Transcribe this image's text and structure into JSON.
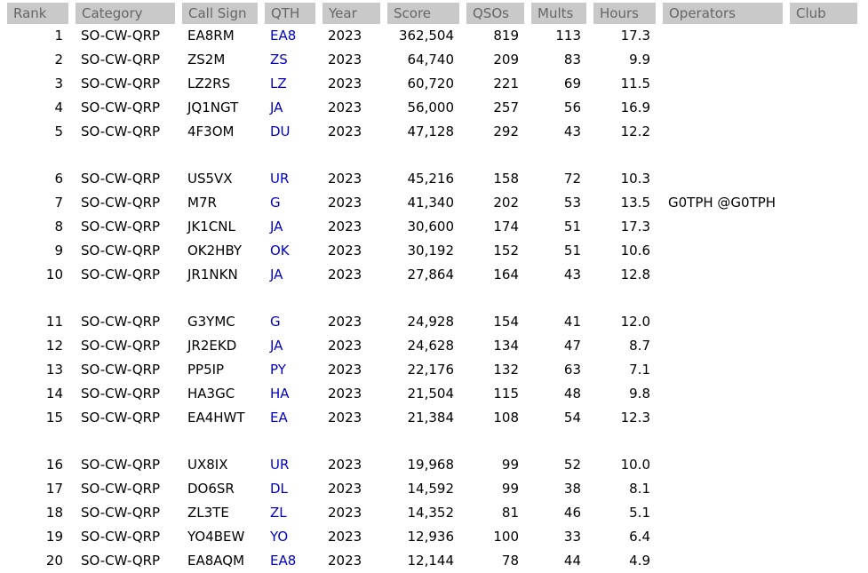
{
  "colors": {
    "header_bg": "#c9c9c9",
    "header_text": "#666666",
    "link_blue": "#0000cc",
    "body_text": "#000000",
    "page_bg": "#ffffff"
  },
  "table": {
    "columns": [
      {
        "key": "rank",
        "label": "Rank"
      },
      {
        "key": "category",
        "label": "Category"
      },
      {
        "key": "call_sign",
        "label": "Call Sign"
      },
      {
        "key": "qth",
        "label": "QTH"
      },
      {
        "key": "year",
        "label": "Year"
      },
      {
        "key": "score",
        "label": "Score"
      },
      {
        "key": "qsos",
        "label": "QSOs"
      },
      {
        "key": "mults",
        "label": "Mults"
      },
      {
        "key": "hours",
        "label": "Hours"
      },
      {
        "key": "operators",
        "label": "Operators"
      },
      {
        "key": "club",
        "label": "Club"
      }
    ],
    "groups": [
      {
        "rows": [
          {
            "rank": "1",
            "category": "SO-CW-QRP",
            "call_sign": "EA8RM",
            "qth": "EA8",
            "year": "2023",
            "score": "362,504",
            "qsos": "819",
            "mults": "113",
            "hours": "17.3",
            "operators": "",
            "club": ""
          },
          {
            "rank": "2",
            "category": "SO-CW-QRP",
            "call_sign": "ZS2M",
            "qth": "ZS",
            "year": "2023",
            "score": "64,740",
            "qsos": "209",
            "mults": "83",
            "hours": "9.9",
            "operators": "",
            "club": ""
          },
          {
            "rank": "3",
            "category": "SO-CW-QRP",
            "call_sign": "LZ2RS",
            "qth": "LZ",
            "year": "2023",
            "score": "60,720",
            "qsos": "221",
            "mults": "69",
            "hours": "11.5",
            "operators": "",
            "club": ""
          },
          {
            "rank": "4",
            "category": "SO-CW-QRP",
            "call_sign": "JQ1NGT",
            "qth": "JA",
            "year": "2023",
            "score": "56,000",
            "qsos": "257",
            "mults": "56",
            "hours": "16.9",
            "operators": "",
            "club": ""
          },
          {
            "rank": "5",
            "category": "SO-CW-QRP",
            "call_sign": "4F3OM",
            "qth": "DU",
            "year": "2023",
            "score": "47,128",
            "qsos": "292",
            "mults": "43",
            "hours": "12.2",
            "operators": "",
            "club": ""
          }
        ]
      },
      {
        "rows": [
          {
            "rank": "6",
            "category": "SO-CW-QRP",
            "call_sign": "US5VX",
            "qth": "UR",
            "year": "2023",
            "score": "45,216",
            "qsos": "158",
            "mults": "72",
            "hours": "10.3",
            "operators": "",
            "club": ""
          },
          {
            "rank": "7",
            "category": "SO-CW-QRP",
            "call_sign": "M7R",
            "qth": "G",
            "year": "2023",
            "score": "41,340",
            "qsos": "202",
            "mults": "53",
            "hours": "13.5",
            "operators": "G0TPH @G0TPH",
            "club": ""
          },
          {
            "rank": "8",
            "category": "SO-CW-QRP",
            "call_sign": "JK1CNL",
            "qth": "JA",
            "year": "2023",
            "score": "30,600",
            "qsos": "174",
            "mults": "51",
            "hours": "17.3",
            "operators": "",
            "club": ""
          },
          {
            "rank": "9",
            "category": "SO-CW-QRP",
            "call_sign": "OK2HBY",
            "qth": "OK",
            "year": "2023",
            "score": "30,192",
            "qsos": "152",
            "mults": "51",
            "hours": "10.6",
            "operators": "",
            "club": ""
          },
          {
            "rank": "10",
            "category": "SO-CW-QRP",
            "call_sign": "JR1NKN",
            "qth": "JA",
            "year": "2023",
            "score": "27,864",
            "qsos": "164",
            "mults": "43",
            "hours": "12.8",
            "operators": "",
            "club": ""
          }
        ]
      },
      {
        "rows": [
          {
            "rank": "11",
            "category": "SO-CW-QRP",
            "call_sign": "G3YMC",
            "qth": "G",
            "year": "2023",
            "score": "24,928",
            "qsos": "154",
            "mults": "41",
            "hours": "12.0",
            "operators": "",
            "club": ""
          },
          {
            "rank": "12",
            "category": "SO-CW-QRP",
            "call_sign": "JR2EKD",
            "qth": "JA",
            "year": "2023",
            "score": "24,628",
            "qsos": "134",
            "mults": "47",
            "hours": "8.7",
            "operators": "",
            "club": ""
          },
          {
            "rank": "13",
            "category": "SO-CW-QRP",
            "call_sign": "PP5IP",
            "qth": "PY",
            "year": "2023",
            "score": "22,176",
            "qsos": "132",
            "mults": "63",
            "hours": "7.1",
            "operators": "",
            "club": ""
          },
          {
            "rank": "14",
            "category": "SO-CW-QRP",
            "call_sign": "HA3GC",
            "qth": "HA",
            "year": "2023",
            "score": "21,504",
            "qsos": "115",
            "mults": "48",
            "hours": "9.8",
            "operators": "",
            "club": ""
          },
          {
            "rank": "15",
            "category": "SO-CW-QRP",
            "call_sign": "EA4HWT",
            "qth": "EA",
            "year": "2023",
            "score": "21,384",
            "qsos": "108",
            "mults": "54",
            "hours": "12.3",
            "operators": "",
            "club": ""
          }
        ]
      },
      {
        "rows": [
          {
            "rank": "16",
            "category": "SO-CW-QRP",
            "call_sign": "UX8IX",
            "qth": "UR",
            "year": "2023",
            "score": "19,968",
            "qsos": "99",
            "mults": "52",
            "hours": "10.0",
            "operators": "",
            "club": ""
          },
          {
            "rank": "17",
            "category": "SO-CW-QRP",
            "call_sign": "DO6SR",
            "qth": "DL",
            "year": "2023",
            "score": "14,592",
            "qsos": "99",
            "mults": "38",
            "hours": "8.1",
            "operators": "",
            "club": ""
          },
          {
            "rank": "18",
            "category": "SO-CW-QRP",
            "call_sign": "ZL3TE",
            "qth": "ZL",
            "year": "2023",
            "score": "14,352",
            "qsos": "81",
            "mults": "46",
            "hours": "5.1",
            "operators": "",
            "club": ""
          },
          {
            "rank": "19",
            "category": "SO-CW-QRP",
            "call_sign": "YO4BEW",
            "qth": "YO",
            "year": "2023",
            "score": "12,936",
            "qsos": "100",
            "mults": "33",
            "hours": "6.4",
            "operators": "",
            "club": ""
          },
          {
            "rank": "20",
            "category": "SO-CW-QRP",
            "call_sign": "EA8AQM",
            "qth": "EA8",
            "year": "2023",
            "score": "12,144",
            "qsos": "78",
            "mults": "44",
            "hours": "4.9",
            "operators": "",
            "club": ""
          }
        ]
      }
    ]
  }
}
